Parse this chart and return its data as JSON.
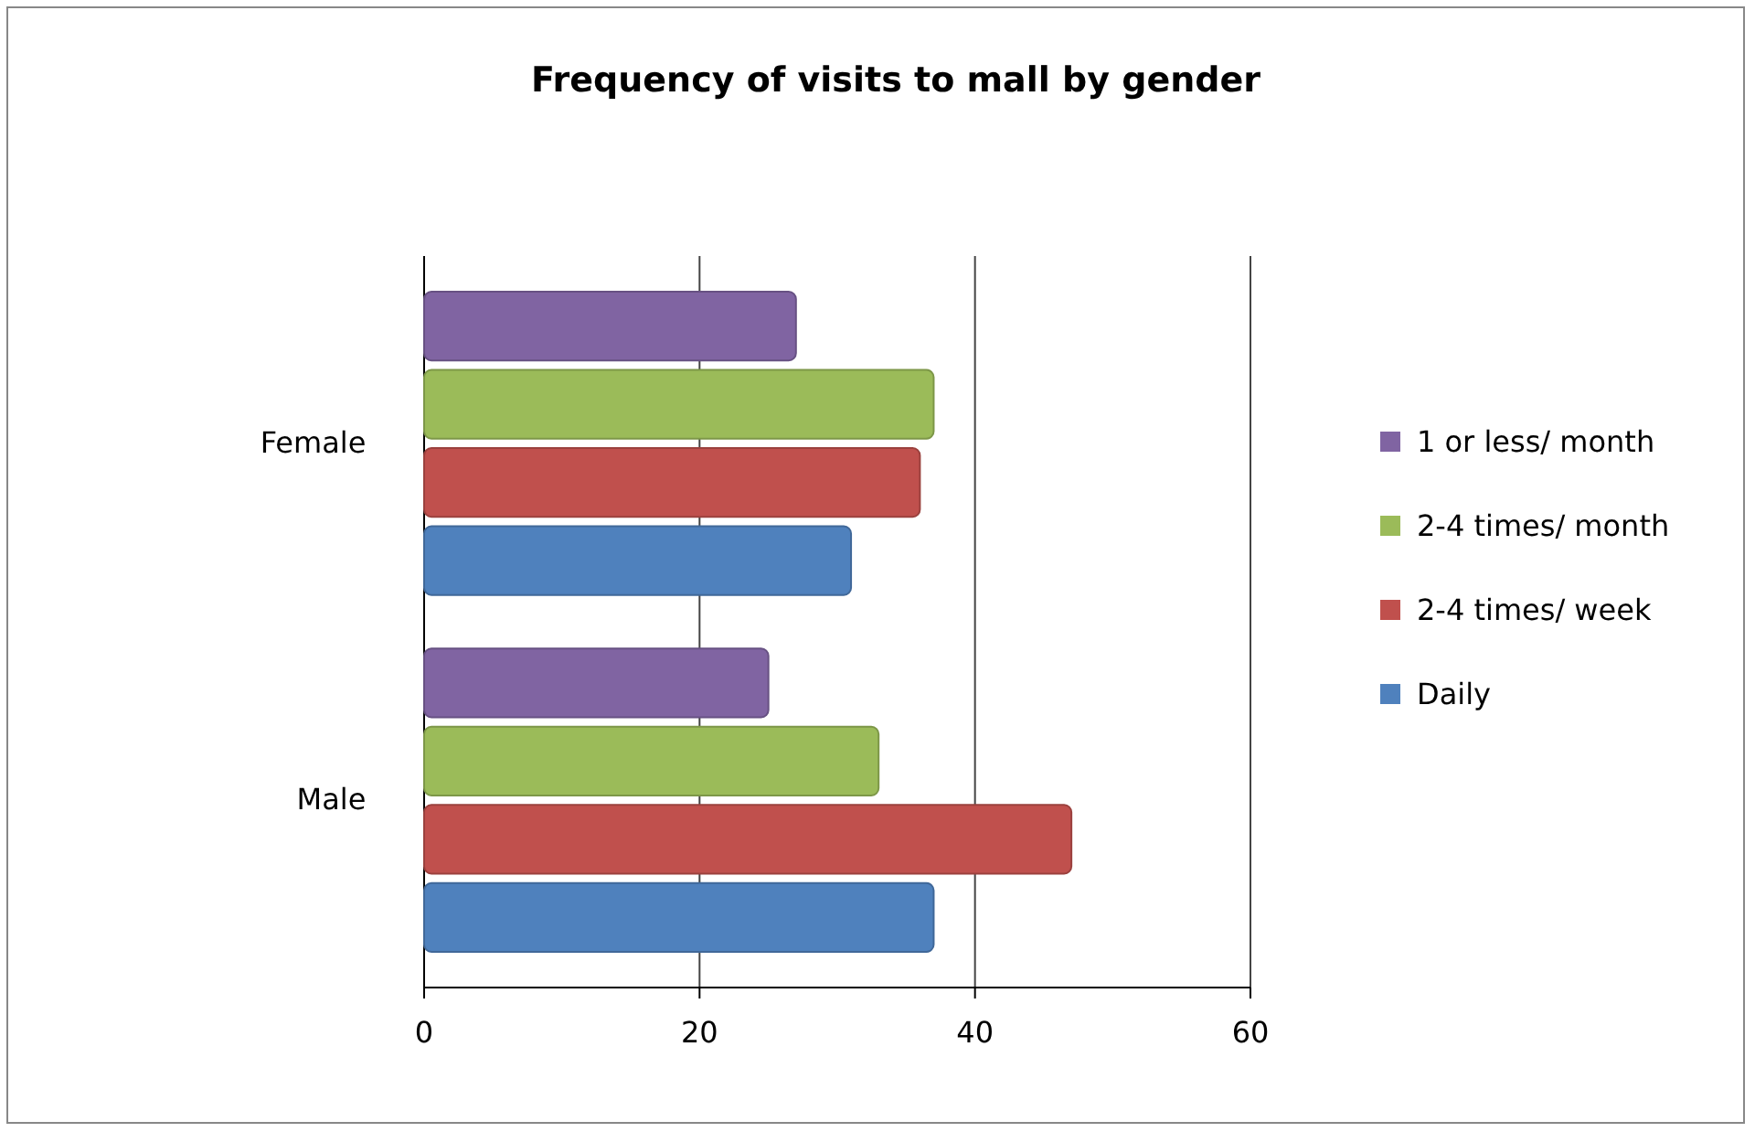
{
  "chart_data": {
    "type": "bar",
    "orientation": "horizontal",
    "title": "Frequency of visits to mall by gender",
    "categories": [
      "Female",
      "Male"
    ],
    "series": [
      {
        "name": "1 or less/ month",
        "color": "#8064a2",
        "values": [
          27,
          25
        ]
      },
      {
        "name": "2-4 times/ month",
        "color": "#9bbb59",
        "values": [
          37,
          33
        ]
      },
      {
        "name": "2-4 times/ week",
        "color": "#c0504d",
        "values": [
          36,
          47
        ]
      },
      {
        "name": "Daily",
        "color": "#4f81bd",
        "values": [
          31,
          37
        ]
      }
    ],
    "xlim": [
      0,
      60
    ],
    "xticks": [
      0,
      20,
      40,
      60
    ],
    "grid": "x",
    "legend": "right"
  }
}
